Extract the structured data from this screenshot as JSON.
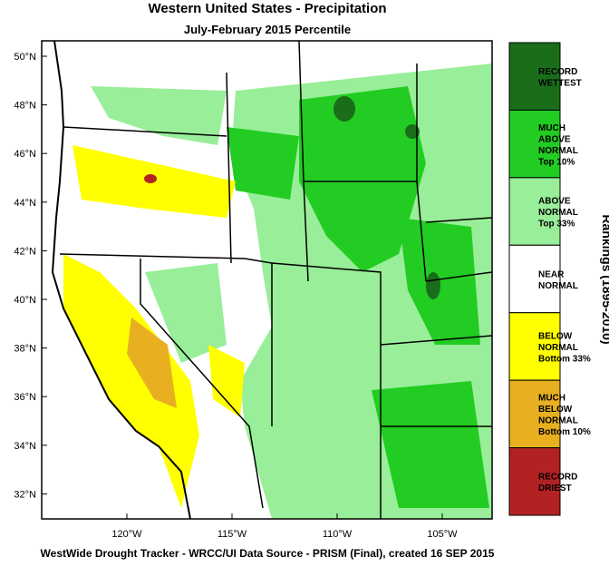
{
  "header": {
    "title": "Western United States - Precipitation",
    "subtitle": "July-February 2015 Percentile"
  },
  "map": {
    "lat_labels": [
      "50°N",
      "48°N",
      "46°N",
      "44°N",
      "42°N",
      "40°N",
      "38°N",
      "36°N",
      "34°N",
      "32°N"
    ],
    "lon_labels": [
      "120°W",
      "115°W",
      "110°W",
      "105°W"
    ]
  },
  "legend": {
    "title": "Rankings (1895-2010)",
    "items": [
      {
        "lines": [
          "RECORD",
          "WETTEST"
        ],
        "color": "#1a6e1a"
      },
      {
        "lines": [
          "MUCH",
          "ABOVE",
          "NORMAL",
          "Top 10%"
        ],
        "color": "#22cc22"
      },
      {
        "lines": [
          "ABOVE",
          "NORMAL",
          "Top 33%"
        ],
        "color": "#99ee99"
      },
      {
        "lines": [
          "NEAR",
          "NORMAL"
        ],
        "color": "#ffffff"
      },
      {
        "lines": [
          "BELOW",
          "NORMAL",
          "Bottom 33%"
        ],
        "color": "#ffff00"
      },
      {
        "lines": [
          "MUCH",
          "BELOW",
          "NORMAL",
          "Bottom 10%"
        ],
        "color": "#e8b020"
      },
      {
        "lines": [
          "RECORD",
          "DRIEST"
        ],
        "color": "#b22222"
      }
    ]
  },
  "footer": "WestWide Drought Tracker - WRCC/UI  Data Source - PRISM (Final), created 16 SEP 2015"
}
